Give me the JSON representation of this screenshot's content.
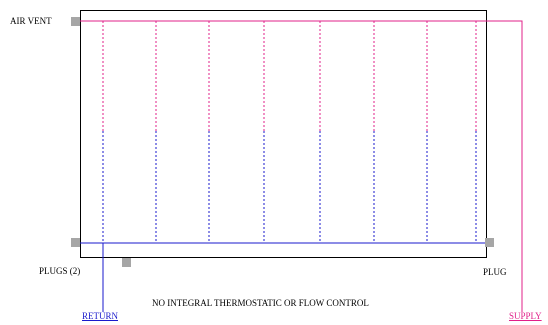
{
  "labels": {
    "air_vent": "AIR VENT",
    "plugs_left": "PLUGS (2)",
    "plug_right": "PLUG",
    "note": "NO INTEGRAL THERMOSTATIC OR FLOW CONTROL",
    "return": "RETURN",
    "supply": "SUPPLY"
  },
  "colors": {
    "supply": "#e0208a",
    "return": "#1a1acc",
    "outline": "#000000",
    "fitting": "#a6a6a6"
  },
  "diagram": {
    "element_count": 8
  }
}
